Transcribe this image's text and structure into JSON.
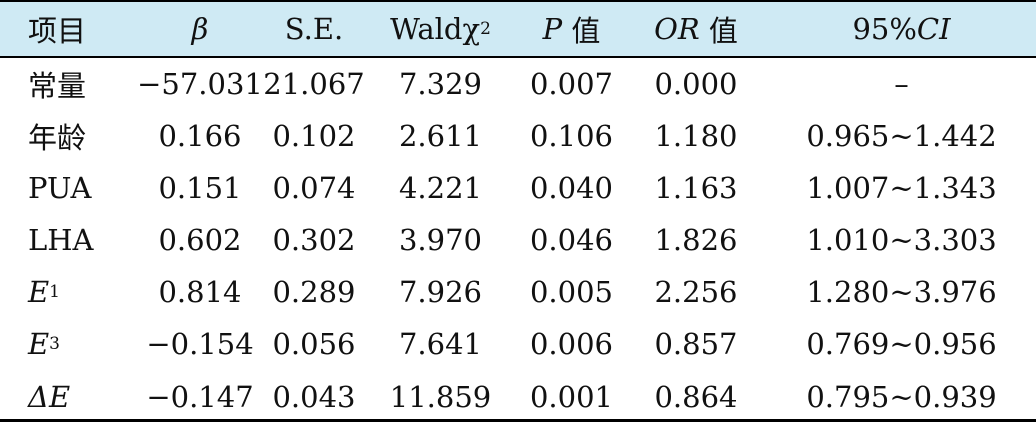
{
  "table": {
    "header": {
      "item": "项目",
      "beta": "β",
      "se": "S.E.",
      "wald_main": "Waldχ",
      "wald_sup": "2",
      "p_italic": "P",
      "p_suffix": " 值",
      "or_italic": "OR",
      "or_suffix": " 值",
      "ci_prefix": "95%",
      "ci_italic": "CI"
    },
    "rows": [
      {
        "label": "常量",
        "beta": "−57.031",
        "se": "21.067",
        "wald": "7.329",
        "p": "0.007",
        "or": "0.000",
        "ci": "–"
      },
      {
        "label": "年龄",
        "beta": "0.166",
        "se": "0.102",
        "wald": "2.611",
        "p": "0.106",
        "or": "1.180",
        "ci": "0.965~1.442"
      },
      {
        "label": "PUA",
        "beta": "0.151",
        "se": "0.074",
        "wald": "4.221",
        "p": "0.040",
        "or": "1.163",
        "ci": "1.007~1.343"
      },
      {
        "label": "LHA",
        "beta": "0.602",
        "se": "0.302",
        "wald": "3.970",
        "p": "0.046",
        "or": "1.826",
        "ci": "1.010~3.303"
      },
      {
        "label_main": "E",
        "label_sub": "1",
        "beta": "0.814",
        "se": "0.289",
        "wald": "7.926",
        "p": "0.005",
        "or": "2.256",
        "ci": "1.280~3.976"
      },
      {
        "label_main": "E",
        "label_sub": "3",
        "beta": "−0.154",
        "se": "0.056",
        "wald": "7.641",
        "p": "0.006",
        "or": "0.857",
        "ci": "0.769~0.956"
      },
      {
        "label_main": "ΔE",
        "beta": "−0.147",
        "se": "0.043",
        "wald": "11.859",
        "p": "0.001",
        "or": "0.864",
        "ci": "0.795~0.939"
      }
    ]
  }
}
